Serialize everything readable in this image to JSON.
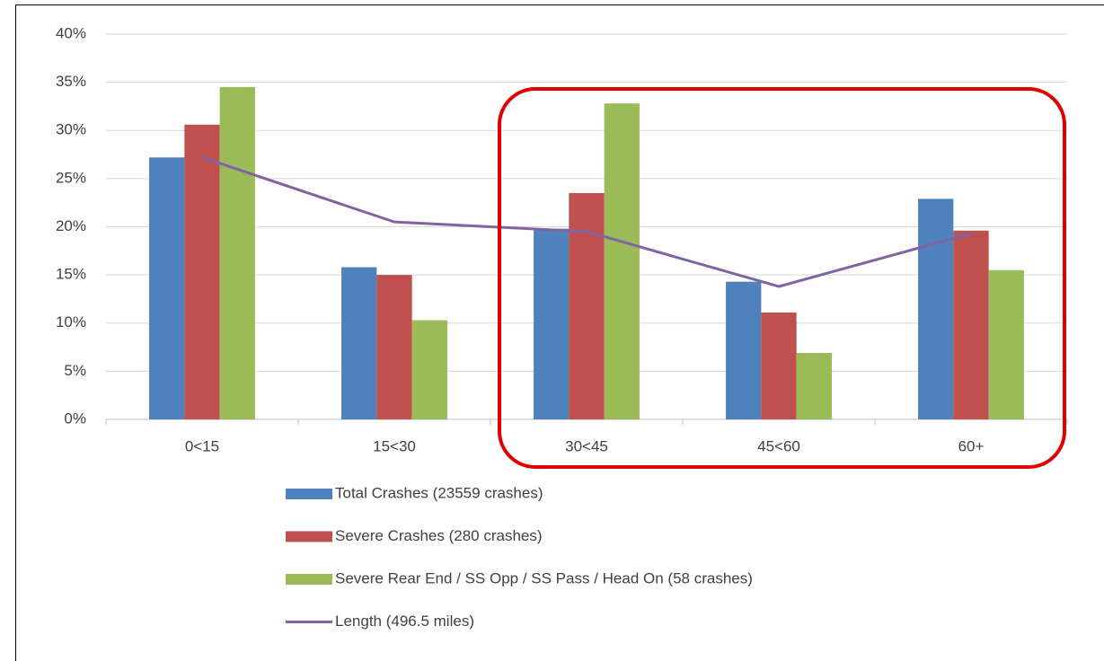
{
  "chart_data": {
    "type": "bar",
    "categories": [
      "0<15",
      "15<30",
      "30<45",
      "45<60",
      "60+"
    ],
    "series": [
      {
        "name": "Total Crashes (23559 crashes)",
        "color": "#4f81bd",
        "values": [
          27.2,
          15.8,
          19.8,
          14.3,
          22.9
        ]
      },
      {
        "name": "Severe Crashes (280 crashes)",
        "color": "#c0504d",
        "values": [
          30.6,
          15.0,
          23.5,
          11.1,
          19.6
        ]
      },
      {
        "name": "Severe Rear End / SS Opp / SS Pass / Head On (58 crashes)",
        "color": "#9bbb59",
        "values": [
          34.5,
          10.3,
          32.8,
          6.9,
          15.5
        ]
      },
      {
        "name": "Length (496.5 miles)",
        "color": "#8064a2",
        "type": "line",
        "values": [
          27.2,
          20.5,
          19.5,
          13.8,
          19.3
        ]
      }
    ],
    "ylim": [
      0,
      40
    ],
    "yticks": [
      {
        "value": 0,
        "label": "0%"
      },
      {
        "value": 5,
        "label": "5%"
      },
      {
        "value": 10,
        "label": "10%"
      },
      {
        "value": 15,
        "label": "15%"
      },
      {
        "value": 20,
        "label": "20%"
      },
      {
        "value": 25,
        "label": "25%"
      },
      {
        "value": 30,
        "label": "30%"
      },
      {
        "value": 35,
        "label": "35%"
      },
      {
        "value": 40,
        "label": "40%"
      }
    ],
    "grid": true,
    "legend": "bottom"
  }
}
